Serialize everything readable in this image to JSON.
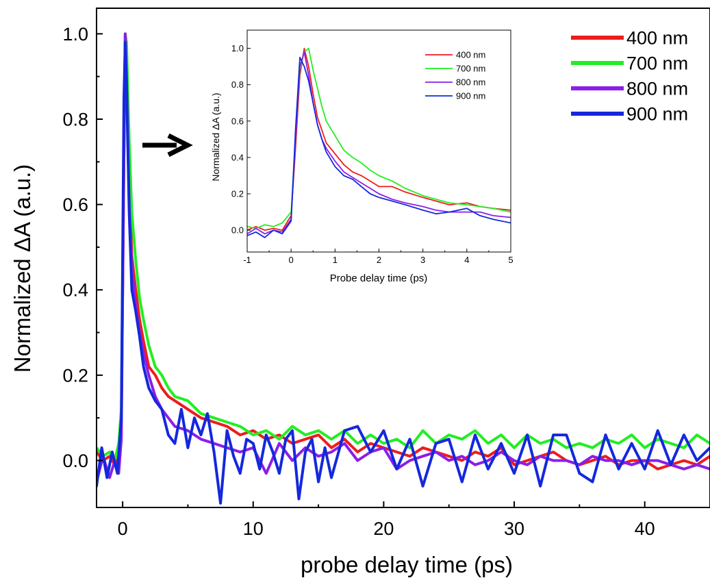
{
  "chart_data": [
    {
      "type": "line",
      "xlabel": "probe delay time (ps)",
      "ylabel": "Normalized ΔA (a.u.)",
      "xlim": [
        -2,
        45
      ],
      "ylim": [
        -0.11,
        1.06
      ],
      "xticks": [
        0,
        10,
        20,
        30,
        40
      ],
      "xtick_labels": [
        "0",
        "10",
        "20",
        "30",
        "40"
      ],
      "yticks": [
        0.0,
        0.2,
        0.4,
        0.6,
        0.8,
        1.0
      ],
      "ytick_labels": [
        "0.0",
        "0.2",
        "0.4",
        "0.6",
        "0.8",
        "1.0"
      ],
      "legend_position": "top-right",
      "annotation": "arrow pointing to inset",
      "series": [
        {
          "name": "400 nm",
          "color": "#ee1c1c",
          "x": [
            -2,
            -1.5,
            -1,
            -0.6,
            -0.3,
            -0.1,
            0.1,
            0.2,
            0.3,
            0.5,
            0.7,
            1,
            1.3,
            1.6,
            2,
            2.5,
            3,
            3.5,
            4,
            5,
            6,
            7,
            8,
            9,
            10,
            11,
            12,
            13,
            14,
            15,
            16,
            17,
            18,
            19,
            20,
            21,
            22,
            23,
            24,
            25,
            26,
            27,
            28,
            29,
            30,
            31,
            32,
            33,
            34,
            35,
            36,
            37,
            38,
            39,
            40,
            41,
            42,
            43,
            44,
            45
          ],
          "y": [
            0.02,
            0.0,
            0.01,
            -0.01,
            0.02,
            0.08,
            0.7,
            1.0,
            0.95,
            0.65,
            0.48,
            0.4,
            0.33,
            0.28,
            0.22,
            0.2,
            0.17,
            0.15,
            0.14,
            0.12,
            0.1,
            0.09,
            0.08,
            0.06,
            0.07,
            0.05,
            0.06,
            0.04,
            0.05,
            0.06,
            0.03,
            0.05,
            0.02,
            0.04,
            0.03,
            0.02,
            0.01,
            0.03,
            0.02,
            0.01,
            0.0,
            0.02,
            0.01,
            0.03,
            -0.01,
            0.0,
            0.01,
            0.02,
            0.0,
            -0.01,
            0.0,
            0.01,
            -0.01,
            0.0,
            0.0,
            -0.02,
            -0.01,
            0.0,
            -0.01,
            0.01
          ]
        },
        {
          "name": "700 nm",
          "color": "#22ee22",
          "x": [
            -2,
            -1.5,
            -1,
            -0.6,
            -0.3,
            -0.1,
            0.1,
            0.2,
            0.3,
            0.5,
            0.7,
            1,
            1.3,
            1.6,
            2,
            2.5,
            3,
            3.5,
            4,
            5,
            6,
            7,
            8,
            9,
            10,
            11,
            12,
            13,
            14,
            15,
            16,
            17,
            18,
            19,
            20,
            21,
            22,
            23,
            24,
            25,
            26,
            27,
            28,
            29,
            30,
            31,
            32,
            33,
            34,
            35,
            36,
            37,
            38,
            39,
            40,
            41,
            42,
            43,
            44,
            45
          ],
          "y": [
            0.03,
            0.01,
            0.02,
            0.0,
            0.04,
            0.12,
            0.75,
            1.0,
            0.98,
            0.75,
            0.58,
            0.47,
            0.38,
            0.33,
            0.27,
            0.22,
            0.2,
            0.17,
            0.15,
            0.14,
            0.11,
            0.1,
            0.09,
            0.08,
            0.06,
            0.07,
            0.05,
            0.08,
            0.06,
            0.07,
            0.05,
            0.07,
            0.04,
            0.06,
            0.04,
            0.05,
            0.03,
            0.07,
            0.04,
            0.06,
            0.05,
            0.07,
            0.04,
            0.06,
            0.03,
            0.06,
            0.04,
            0.05,
            0.03,
            0.04,
            0.03,
            0.05,
            0.04,
            0.06,
            0.03,
            0.05,
            0.04,
            0.03,
            0.06,
            0.04
          ]
        },
        {
          "name": "800 nm",
          "color": "#8c1ee8",
          "x": [
            -2,
            -1.5,
            -1,
            -0.6,
            -0.3,
            -0.1,
            0.1,
            0.2,
            0.3,
            0.5,
            0.7,
            1,
            1.3,
            1.6,
            2,
            2.5,
            3,
            3.5,
            4,
            5,
            6,
            7,
            8,
            9,
            10,
            11,
            12,
            13,
            14,
            15,
            16,
            17,
            18,
            19,
            20,
            21,
            22,
            23,
            24,
            25,
            26,
            27,
            28,
            29,
            30,
            31,
            32,
            33,
            34,
            35,
            36,
            37,
            38,
            39,
            40,
            41,
            42,
            43,
            44,
            45
          ],
          "y": [
            -0.05,
            0.01,
            -0.04,
            0.0,
            -0.03,
            0.05,
            0.72,
            1.0,
            0.9,
            0.6,
            0.45,
            0.36,
            0.3,
            0.25,
            0.2,
            0.15,
            0.12,
            0.1,
            0.08,
            0.07,
            0.05,
            0.04,
            0.03,
            0.02,
            0.03,
            -0.03,
            0.04,
            0.0,
            0.03,
            0.01,
            0.02,
            0.04,
            0.0,
            0.02,
            0.03,
            -0.02,
            0.0,
            0.01,
            0.02,
            0.0,
            0.01,
            -0.01,
            0.0,
            0.02,
            0.0,
            -0.01,
            0.01,
            0.0,
            0.0,
            -0.01,
            0.01,
            0.0,
            0.0,
            -0.01,
            0.0,
            0.0,
            -0.01,
            -0.02,
            -0.01,
            -0.02
          ]
        },
        {
          "name": "900 nm",
          "color": "#1428dc",
          "x": [
            -2,
            -1.6,
            -1.2,
            -0.8,
            -0.4,
            -0.1,
            0.1,
            0.2,
            0.3,
            0.5,
            0.7,
            1,
            1.3,
            1.6,
            2,
            2.5,
            3,
            3.5,
            4,
            4.5,
            5,
            5.5,
            6,
            6.5,
            7,
            7.5,
            8,
            8.5,
            9,
            9.5,
            10,
            10.5,
            11,
            11.5,
            12,
            12.5,
            13,
            13.5,
            14,
            14.5,
            15,
            15.5,
            16,
            17,
            18,
            19,
            20,
            21,
            22,
            23,
            24,
            25,
            26,
            27,
            28,
            29,
            30,
            31,
            32,
            33,
            34,
            35,
            36,
            37,
            38,
            39,
            40,
            41,
            42,
            43,
            44,
            45
          ],
          "y": [
            -0.06,
            0.03,
            -0.04,
            0.02,
            -0.03,
            0.1,
            0.85,
            0.98,
            0.88,
            0.58,
            0.4,
            0.35,
            0.29,
            0.22,
            0.17,
            0.14,
            0.12,
            0.06,
            0.04,
            0.12,
            0.03,
            0.1,
            0.06,
            0.11,
            0.02,
            -0.1,
            0.07,
            0.01,
            -0.03,
            0.05,
            0.04,
            -0.02,
            0.06,
            0.02,
            -0.03,
            0.05,
            0.07,
            -0.09,
            0.02,
            0.05,
            -0.05,
            0.03,
            -0.04,
            0.07,
            0.08,
            0.02,
            0.07,
            -0.02,
            0.05,
            -0.06,
            0.04,
            0.05,
            -0.05,
            0.06,
            -0.02,
            0.04,
            -0.03,
            0.06,
            -0.06,
            0.06,
            0.06,
            -0.03,
            -0.05,
            0.06,
            -0.02,
            0.04,
            -0.02,
            0.07,
            -0.01,
            0.06,
            0.0,
            0.03
          ]
        }
      ]
    },
    {
      "type": "line",
      "xlabel": "Probe delay time (ps)",
      "ylabel": "Normalized ΔA (a.u.)",
      "xlim": [
        -1,
        5
      ],
      "ylim": [
        -0.12,
        1.1
      ],
      "xticks": [
        -1,
        0,
        1,
        2,
        3,
        4,
        5
      ],
      "xtick_labels": [
        "-1",
        "0",
        "1",
        "2",
        "3",
        "4",
        "5"
      ],
      "yticks": [
        0.0,
        0.2,
        0.4,
        0.6,
        0.8,
        1.0
      ],
      "ytick_labels": [
        "0.0",
        "0.2",
        "0.4",
        "0.6",
        "0.8",
        "1.0"
      ],
      "legend_position": "top-right",
      "series": [
        {
          "name": "400 nm",
          "color": "#ee1c1c",
          "x": [
            -1,
            -0.8,
            -0.6,
            -0.4,
            -0.2,
            0.0,
            0.1,
            0.2,
            0.3,
            0.4,
            0.5,
            0.6,
            0.7,
            0.8,
            1.0,
            1.2,
            1.4,
            1.6,
            1.8,
            2.0,
            2.3,
            2.6,
            3.0,
            3.3,
            3.6,
            4.0,
            4.3,
            4.6,
            5.0
          ],
          "y": [
            0.0,
            0.02,
            0.0,
            0.01,
            0.0,
            0.08,
            0.45,
            0.85,
            1.0,
            0.9,
            0.75,
            0.62,
            0.55,
            0.48,
            0.42,
            0.36,
            0.32,
            0.3,
            0.27,
            0.24,
            0.24,
            0.21,
            0.18,
            0.16,
            0.14,
            0.15,
            0.13,
            0.12,
            0.11
          ]
        },
        {
          "name": "700 nm",
          "color": "#22ee22",
          "x": [
            -1,
            -0.8,
            -0.6,
            -0.4,
            -0.2,
            0.0,
            0.1,
            0.2,
            0.3,
            0.4,
            0.5,
            0.6,
            0.7,
            0.8,
            1.0,
            1.2,
            1.4,
            1.6,
            1.8,
            2.0,
            2.3,
            2.6,
            3.0,
            3.3,
            3.6,
            4.0,
            4.3,
            4.6,
            5.0
          ],
          "y": [
            0.02,
            0.01,
            0.03,
            0.02,
            0.04,
            0.1,
            0.5,
            0.88,
            0.98,
            1.0,
            0.88,
            0.78,
            0.68,
            0.6,
            0.52,
            0.44,
            0.4,
            0.37,
            0.33,
            0.3,
            0.27,
            0.23,
            0.19,
            0.17,
            0.15,
            0.14,
            0.13,
            0.12,
            0.1
          ]
        },
        {
          "name": "800 nm",
          "color": "#8c1ee8",
          "x": [
            -1,
            -0.8,
            -0.6,
            -0.4,
            -0.2,
            0.0,
            0.1,
            0.2,
            0.3,
            0.4,
            0.5,
            0.6,
            0.7,
            0.8,
            1.0,
            1.2,
            1.4,
            1.6,
            1.8,
            2.0,
            2.3,
            2.6,
            3.0,
            3.3,
            3.6,
            4.0,
            4.3,
            4.6,
            5.0
          ],
          "y": [
            -0.02,
            0.01,
            -0.02,
            0.0,
            -0.01,
            0.06,
            0.5,
            0.9,
            0.98,
            0.85,
            0.7,
            0.58,
            0.5,
            0.45,
            0.38,
            0.32,
            0.29,
            0.26,
            0.23,
            0.2,
            0.17,
            0.15,
            0.13,
            0.11,
            0.1,
            0.1,
            0.1,
            0.08,
            0.07
          ]
        },
        {
          "name": "900 nm",
          "color": "#1428dc",
          "x": [
            -1,
            -0.8,
            -0.6,
            -0.4,
            -0.2,
            0.0,
            0.1,
            0.2,
            0.3,
            0.4,
            0.5,
            0.6,
            0.7,
            0.8,
            1.0,
            1.2,
            1.4,
            1.6,
            1.8,
            2.0,
            2.3,
            2.6,
            3.0,
            3.3,
            3.6,
            4.0,
            4.3,
            4.6,
            5.0
          ],
          "y": [
            -0.03,
            -0.01,
            -0.04,
            0.0,
            -0.02,
            0.05,
            0.55,
            0.95,
            0.9,
            0.82,
            0.7,
            0.58,
            0.5,
            0.43,
            0.35,
            0.3,
            0.28,
            0.24,
            0.2,
            0.18,
            0.16,
            0.14,
            0.11,
            0.09,
            0.1,
            0.12,
            0.08,
            0.06,
            0.04
          ]
        }
      ]
    }
  ]
}
